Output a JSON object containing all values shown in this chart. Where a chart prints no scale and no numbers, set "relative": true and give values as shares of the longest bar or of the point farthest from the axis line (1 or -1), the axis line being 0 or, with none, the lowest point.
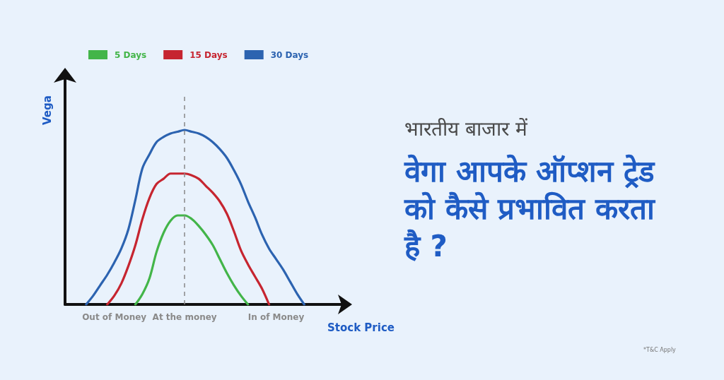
{
  "chart_data": {
    "type": "line",
    "subtitle": "भारतीय बाजार में",
    "title": "वेगा आपके ऑप्शन ट्रेड को कैसे प्रभावित करता है ?",
    "xlabel": "Stock Price",
    "ylabel": "Vega",
    "relative": true,
    "categories": [
      null,
      null,
      null,
      null,
      null,
      null,
      null,
      "Out of Money",
      null,
      null,
      null,
      null,
      null,
      null,
      null,
      null,
      null,
      "At the money",
      null,
      null,
      null,
      null,
      null,
      null,
      null,
      null,
      null,
      null,
      null,
      null,
      "In of Money",
      null,
      null,
      null,
      null,
      null,
      null,
      null,
      null,
      null,
      null
    ],
    "series": [
      {
        "name": "5 Days",
        "color": "#43b549",
        "values": [
          null,
          null,
          null,
          null,
          null,
          null,
          null,
          null,
          null,
          null,
          0,
          0.06,
          0.15,
          0.3,
          0.41,
          0.48,
          0.51,
          0.51,
          0.49,
          0.45,
          0.4,
          0.34,
          0.26,
          0.18,
          0.11,
          0.05,
          0,
          null,
          null,
          null,
          null,
          null,
          null,
          null,
          null,
          null,
          null,
          null,
          null,
          null,
          null
        ]
      },
      {
        "name": "15 Days",
        "color": "#c62530",
        "values": [
          null,
          null,
          null,
          null,
          null,
          null,
          0,
          0.05,
          0.12,
          0.22,
          0.34,
          0.49,
          0.61,
          0.69,
          0.72,
          0.75,
          0.75,
          0.75,
          0.74,
          0.72,
          0.68,
          0.64,
          0.59,
          0.52,
          0.42,
          0.31,
          0.23,
          0.16,
          0.09,
          0,
          null,
          null,
          null,
          null,
          null,
          null,
          null,
          null,
          null,
          null,
          null
        ]
      },
      {
        "name": "30 Days",
        "color": "#2c63b0",
        "values": [
          null,
          null,
          null,
          0,
          0.05,
          0.11,
          0.17,
          0.24,
          0.32,
          0.43,
          0.6,
          0.78,
          0.86,
          0.93,
          0.96,
          0.98,
          0.99,
          1,
          0.99,
          0.98,
          0.96,
          0.93,
          0.89,
          0.84,
          0.77,
          0.69,
          0.59,
          0.5,
          0.4,
          0.32,
          0.26,
          0.2,
          0.13,
          0.06,
          0,
          null,
          null,
          null,
          null,
          null,
          null
        ]
      }
    ],
    "ref_lines": [
      {
        "axis": "x",
        "value": "At the money",
        "color": "#888888",
        "line_style": "dashed"
      }
    ],
    "legend": "top left",
    "marker": "none",
    "tick_labels": "x",
    "annotations": [
      "*T&C Apply"
    ]
  }
}
